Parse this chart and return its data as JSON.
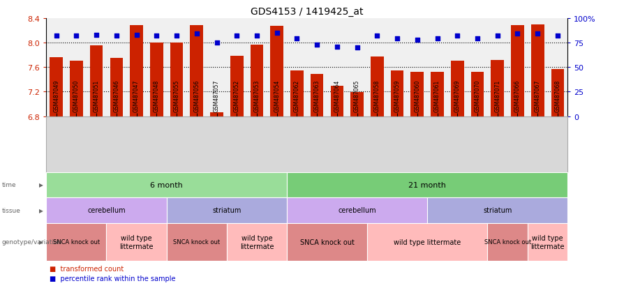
{
  "title": "GDS4153 / 1419425_at",
  "samples": [
    "GSM487049",
    "GSM487050",
    "GSM487051",
    "GSM487046",
    "GSM487047",
    "GSM487048",
    "GSM487055",
    "GSM487056",
    "GSM487057",
    "GSM487052",
    "GSM487053",
    "GSM487054",
    "GSM487062",
    "GSM487063",
    "GSM487064",
    "GSM487065",
    "GSM487058",
    "GSM487059",
    "GSM487060",
    "GSM487061",
    "GSM487069",
    "GSM487070",
    "GSM487071",
    "GSM487066",
    "GSM487067",
    "GSM487068"
  ],
  "bar_values": [
    7.76,
    7.7,
    7.95,
    7.75,
    8.28,
    8.0,
    8.0,
    8.28,
    6.87,
    7.78,
    7.97,
    8.27,
    7.55,
    7.49,
    7.3,
    7.19,
    7.77,
    7.55,
    7.52,
    7.52,
    7.7,
    7.52,
    7.72,
    8.28,
    8.3,
    7.57
  ],
  "percentile_values": [
    82,
    82,
    83,
    82,
    83,
    82,
    82,
    84,
    75,
    82,
    82,
    85,
    79,
    73,
    71,
    70,
    82,
    79,
    78,
    79,
    82,
    79,
    82,
    84,
    84,
    82
  ],
  "ymin": 6.8,
  "ymax": 8.4,
  "yticks_left": [
    6.8,
    7.2,
    7.6,
    8.0,
    8.4
  ],
  "yticks_right": [
    0,
    25,
    50,
    75,
    100
  ],
  "ytick_right_labels": [
    "0",
    "25",
    "50",
    "75",
    "100%"
  ],
  "bar_color": "#cc2200",
  "dot_color": "#0000cc",
  "grid_yticks": [
    7.2,
    7.6,
    8.0
  ],
  "plot_bg_color": "#f0f0f0",
  "xtick_area_color": "#d8d8d8",
  "time_groups": [
    {
      "label": "6 month",
      "start": 0,
      "end": 11,
      "color": "#99dd99"
    },
    {
      "label": "21 month",
      "start": 12,
      "end": 25,
      "color": "#77cc77"
    }
  ],
  "tissue_groups": [
    {
      "label": "cerebellum",
      "start": 0,
      "end": 5,
      "color": "#ccaaee"
    },
    {
      "label": "striatum",
      "start": 6,
      "end": 11,
      "color": "#aaaadd"
    },
    {
      "label": "cerebellum",
      "start": 12,
      "end": 18,
      "color": "#ccaaee"
    },
    {
      "label": "striatum",
      "start": 19,
      "end": 25,
      "color": "#aaaadd"
    }
  ],
  "genotype_groups": [
    {
      "label": "SNCA knock out",
      "start": 0,
      "end": 2,
      "color": "#dd8888",
      "fontsize": 6
    },
    {
      "label": "wild type\nlittermate",
      "start": 3,
      "end": 5,
      "color": "#ffbbbb",
      "fontsize": 7
    },
    {
      "label": "SNCA knock out",
      "start": 6,
      "end": 8,
      "color": "#dd8888",
      "fontsize": 6
    },
    {
      "label": "wild type\nlittermate",
      "start": 9,
      "end": 11,
      "color": "#ffbbbb",
      "fontsize": 7
    },
    {
      "label": "SNCA knock out",
      "start": 12,
      "end": 15,
      "color": "#dd8888",
      "fontsize": 7
    },
    {
      "label": "wild type littermate",
      "start": 16,
      "end": 21,
      "color": "#ffbbbb",
      "fontsize": 7
    },
    {
      "label": "SNCA knock out",
      "start": 22,
      "end": 23,
      "color": "#dd8888",
      "fontsize": 6
    },
    {
      "label": "wild type\nlittermate",
      "start": 24,
      "end": 25,
      "color": "#ffbbbb",
      "fontsize": 7
    }
  ],
  "row_labels": [
    "time",
    "tissue",
    "genotype/variation"
  ],
  "row_label_color": "#666666",
  "legend_items": [
    {
      "label": "transformed count",
      "color": "#cc2200"
    },
    {
      "label": "percentile rank within the sample",
      "color": "#0000cc"
    }
  ]
}
